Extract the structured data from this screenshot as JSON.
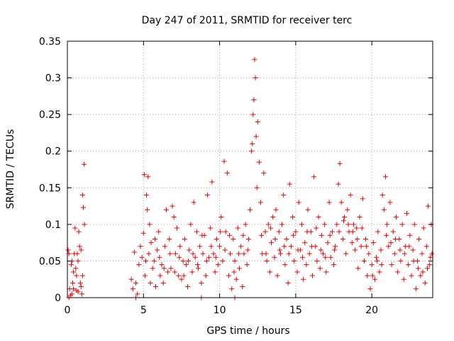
{
  "chart_data": {
    "type": "scatter",
    "title": "Day 247 of 2011, SRMTID for receiver terc",
    "xlabel": "GPS time / hours",
    "ylabel": "SRMTID / TECUs",
    "xlim": [
      0,
      24
    ],
    "ylim": [
      0,
      0.35
    ],
    "xticks": [
      0,
      5,
      10,
      15,
      20
    ],
    "xtick_labels": [
      "0",
      "5",
      "10",
      "15",
      "20"
    ],
    "yticks": [
      0,
      0.05,
      0.1,
      0.15,
      0.2,
      0.25,
      0.3,
      0.35
    ],
    "ytick_labels": [
      "0",
      "0.05",
      "0.1",
      "0.15",
      "0.2",
      "0.25",
      "0.3",
      "0.35"
    ],
    "grid": true,
    "marker": "+",
    "series": [
      {
        "name": "SRMTID",
        "color": "#ee0000",
        "points": [
          [
            0.05,
            0.065
          ],
          [
            0.1,
            0.06
          ],
          [
            0.15,
            0.012
          ],
          [
            0.2,
            0.003
          ],
          [
            0.25,
            0.045
          ],
          [
            0.3,
            0.05
          ],
          [
            0.35,
            0.02
          ],
          [
            0.4,
            0.035
          ],
          [
            0.45,
            0.06
          ],
          [
            0.5,
            0.095
          ],
          [
            0.55,
            0.04
          ],
          [
            0.6,
            0.01
          ],
          [
            0.65,
            0.06
          ],
          [
            0.7,
            0.05
          ],
          [
            0.75,
            0.09
          ],
          [
            0.8,
            0.07
          ],
          [
            0.85,
            0.02
          ],
          [
            0.9,
            0.065
          ],
          [
            0.95,
            0.005
          ],
          [
            1.0,
            0.14
          ],
          [
            1.05,
            0.123
          ],
          [
            1.1,
            0.182
          ],
          [
            1.12,
            0.1
          ],
          [
            1.0,
            0.03
          ],
          [
            0.9,
            0.015
          ],
          [
            0.4,
            0.012
          ],
          [
            0.3,
            0.005
          ],
          [
            0.6,
            0.03
          ],
          [
            0.7,
            0.008
          ],
          [
            4.2,
            0.025
          ],
          [
            4.3,
            0.012
          ],
          [
            4.4,
            0.062
          ],
          [
            4.5,
            0.02
          ],
          [
            4.6,
            0.005
          ],
          [
            4.7,
            0.045
          ],
          [
            4.8,
            0.07
          ],
          [
            4.9,
            0.055
          ],
          [
            5.0,
            0.088
          ],
          [
            5.05,
            0.168
          ],
          [
            5.1,
            0.03
          ],
          [
            5.2,
            0.14
          ],
          [
            5.25,
            0.12
          ],
          [
            5.3,
            0.165
          ],
          [
            5.35,
            0.06
          ],
          [
            5.4,
            0.1
          ],
          [
            5.5,
            0.075
          ],
          [
            5.6,
            0.04
          ],
          [
            5.7,
            0.05
          ],
          [
            5.8,
            0.015
          ],
          [
            5.9,
            0.065
          ],
          [
            6.0,
            0.09
          ],
          [
            6.1,
            0.03
          ],
          [
            6.2,
            0.045
          ],
          [
            6.3,
            0.02
          ],
          [
            6.4,
            0.07
          ],
          [
            6.5,
            0.12
          ],
          [
            6.6,
            0.035
          ],
          [
            6.7,
            0.08
          ],
          [
            6.8,
            0.04
          ],
          [
            6.9,
            0.125
          ],
          [
            7.0,
            0.11
          ],
          [
            7.1,
            0.06
          ],
          [
            7.2,
            0.095
          ],
          [
            7.3,
            0.03
          ],
          [
            7.4,
            0.07
          ],
          [
            7.5,
            0.025
          ],
          [
            7.6,
            0.05
          ],
          [
            7.7,
            0.08
          ],
          [
            7.8,
            0.045
          ],
          [
            7.9,
            0.015
          ],
          [
            8.0,
            0.065
          ],
          [
            8.1,
            0.1
          ],
          [
            8.2,
            0.035
          ],
          [
            8.3,
            0.13
          ],
          [
            8.4,
            0.055
          ],
          [
            8.5,
            0.09
          ],
          [
            8.6,
            0.04
          ],
          [
            8.7,
            0.07
          ],
          [
            8.8,
            0.02
          ],
          [
            8.9,
            0.06
          ],
          [
            9.0,
            0.085
          ],
          [
            9.1,
            0.03
          ],
          [
            9.2,
            0.14
          ],
          [
            9.3,
            0.055
          ],
          [
            9.4,
            0.095
          ],
          [
            9.5,
            0.158
          ],
          [
            9.6,
            0.06
          ],
          [
            9.7,
            0.035
          ],
          [
            9.8,
            0.08
          ],
          [
            9.9,
            0.045
          ],
          [
            10.0,
            0.07
          ],
          [
            10.1,
            0.11
          ],
          [
            10.2,
            0.05
          ],
          [
            10.3,
            0.186
          ],
          [
            10.4,
            0.09
          ],
          [
            10.5,
            0.17
          ],
          [
            10.6,
            0.03
          ],
          [
            10.7,
            0.06
          ],
          [
            10.8,
            0.012
          ],
          [
            10.9,
            0.08
          ],
          [
            11.0,
            0.05
          ],
          [
            11.1,
            0.025
          ],
          [
            11.2,
            0.095
          ],
          [
            11.3,
            0.04
          ],
          [
            11.4,
            0.07
          ],
          [
            11.5,
            0.015
          ],
          [
            11.6,
            0.06
          ],
          [
            11.7,
            0.1
          ],
          [
            11.8,
            0.045
          ],
          [
            11.9,
            0.08
          ],
          [
            12.0,
            0.12
          ],
          [
            12.1,
            0.2
          ],
          [
            12.15,
            0.21
          ],
          [
            12.2,
            0.25
          ],
          [
            12.25,
            0.27
          ],
          [
            12.3,
            0.325
          ],
          [
            12.35,
            0.3
          ],
          [
            12.4,
            0.22
          ],
          [
            12.45,
            0.15
          ],
          [
            12.5,
            0.24
          ],
          [
            12.6,
            0.185
          ],
          [
            12.7,
            0.13
          ],
          [
            12.8,
            0.06
          ],
          [
            12.9,
            0.17
          ],
          [
            13.0,
            0.09
          ],
          [
            13.1,
            0.05
          ],
          [
            13.2,
            0.1
          ],
          [
            13.3,
            0.035
          ],
          [
            13.4,
            0.075
          ],
          [
            13.5,
            0.11
          ],
          [
            13.6,
            0.055
          ],
          [
            13.7,
            0.12
          ],
          [
            13.8,
            0.03
          ],
          [
            13.9,
            0.09
          ],
          [
            14.0,
            0.06
          ],
          [
            14.1,
            0.1
          ],
          [
            14.2,
            0.14
          ],
          [
            14.3,
            0.045
          ],
          [
            14.4,
            0.08
          ],
          [
            14.5,
            0.02
          ],
          [
            14.6,
            0.155
          ],
          [
            14.7,
            0.07
          ],
          [
            14.8,
            0.11
          ],
          [
            14.9,
            0.05
          ],
          [
            15.0,
            0.09
          ],
          [
            15.1,
            0.035
          ],
          [
            15.2,
            0.13
          ],
          [
            15.3,
            0.065
          ],
          [
            15.4,
            0.1
          ],
          [
            15.5,
            0.025
          ],
          [
            15.6,
            0.075
          ],
          [
            15.7,
            0.045
          ],
          [
            15.8,
            0.12
          ],
          [
            15.9,
            0.06
          ],
          [
            16.0,
            0.09
          ],
          [
            16.1,
            0.03
          ],
          [
            16.2,
            0.165
          ],
          [
            16.3,
            0.07
          ],
          [
            16.4,
            0.05
          ],
          [
            16.5,
            0.11
          ],
          [
            16.6,
            0.04
          ],
          [
            16.7,
            0.085
          ],
          [
            16.8,
            0.06
          ],
          [
            16.9,
            0.1
          ],
          [
            17.0,
            0.035
          ],
          [
            17.1,
            0.075
          ],
          [
            17.2,
            0.13
          ],
          [
            17.3,
            0.055
          ],
          [
            17.4,
            0.09
          ],
          [
            17.5,
            0.045
          ],
          [
            17.6,
            0.07
          ],
          [
            17.7,
            0.1
          ],
          [
            17.8,
            0.155
          ],
          [
            17.9,
            0.183
          ],
          [
            18.0,
            0.13
          ],
          [
            18.1,
            0.08
          ],
          [
            18.2,
            0.11
          ],
          [
            18.3,
            0.06
          ],
          [
            18.4,
            0.12
          ],
          [
            18.5,
            0.09
          ],
          [
            18.6,
            0.14
          ],
          [
            18.7,
            0.075
          ],
          [
            18.8,
            0.1
          ],
          [
            18.9,
            0.065
          ],
          [
            19.0,
            0.095
          ],
          [
            19.1,
            0.04
          ],
          [
            19.2,
            0.11
          ],
          [
            19.3,
            0.07
          ],
          [
            19.4,
            0.135
          ],
          [
            19.5,
            0.05
          ],
          [
            19.6,
            0.08
          ],
          [
            19.7,
            0.03
          ],
          [
            19.8,
            0.06
          ],
          [
            19.9,
            0.012
          ],
          [
            20.0,
            0.045
          ],
          [
            20.1,
            0.075
          ],
          [
            20.2,
            0.025
          ],
          [
            20.3,
            0.055
          ],
          [
            20.4,
            0.09
          ],
          [
            20.5,
            0.035
          ],
          [
            20.6,
            0.065
          ],
          [
            20.7,
            0.14
          ],
          [
            20.8,
            0.12
          ],
          [
            20.9,
            0.165
          ],
          [
            21.0,
            0.1
          ],
          [
            21.1,
            0.07
          ],
          [
            21.2,
            0.13
          ],
          [
            21.3,
            0.045
          ],
          [
            21.4,
            0.09
          ],
          [
            21.5,
            0.06
          ],
          [
            21.6,
            0.11
          ],
          [
            21.7,
            0.035
          ],
          [
            21.8,
            0.08
          ],
          [
            21.9,
            0.05
          ],
          [
            22.0,
            0.1
          ],
          [
            22.1,
            0.025
          ],
          [
            22.2,
            0.07
          ],
          [
            22.3,
            0.115
          ],
          [
            22.4,
            0.045
          ],
          [
            22.5,
            0.085
          ],
          [
            22.6,
            0.03
          ],
          [
            22.7,
            0.065
          ],
          [
            22.8,
            0.1
          ],
          [
            22.9,
            0.012
          ],
          [
            23.0,
            0.05
          ],
          [
            23.1,
            0.08
          ],
          [
            23.2,
            0.03
          ],
          [
            23.3,
            0.06
          ],
          [
            23.4,
            0.095
          ],
          [
            23.5,
            0.02
          ],
          [
            23.6,
            0.07
          ],
          [
            23.7,
            0.125
          ],
          [
            23.8,
            0.045
          ],
          [
            23.9,
            0.1
          ],
          [
            23.95,
            0.06
          ],
          [
            5.15,
            0.05
          ],
          [
            5.45,
            0.02
          ],
          [
            5.75,
            0.08
          ],
          [
            6.05,
            0.055
          ],
          [
            6.35,
            0.04
          ],
          [
            6.75,
            0.06
          ],
          [
            7.05,
            0.035
          ],
          [
            7.35,
            0.055
          ],
          [
            7.65,
            0.03
          ],
          [
            7.95,
            0.05
          ],
          [
            8.25,
            0.06
          ],
          [
            8.55,
            0.045
          ],
          [
            8.85,
            0.085
          ],
          [
            9.15,
            0.05
          ],
          [
            9.45,
            0.07
          ],
          [
            9.75,
            0.055
          ],
          [
            10.05,
            0.09
          ],
          [
            10.35,
            0.065
          ],
          [
            10.65,
            0.085
          ],
          [
            10.95,
            0.035
          ],
          [
            11.25,
            0.06
          ],
          [
            11.55,
            0.085
          ],
          [
            11.85,
            0.065
          ],
          [
            12.75,
            0.085
          ],
          [
            13.05,
            0.06
          ],
          [
            13.35,
            0.095
          ],
          [
            13.65,
            0.08
          ],
          [
            13.95,
            0.065
          ],
          [
            14.25,
            0.07
          ],
          [
            14.55,
            0.06
          ],
          [
            14.85,
            0.085
          ],
          [
            15.15,
            0.065
          ],
          [
            15.45,
            0.055
          ],
          [
            15.75,
            0.09
          ],
          [
            16.05,
            0.07
          ],
          [
            16.35,
            0.095
          ],
          [
            16.65,
            0.065
          ],
          [
            16.95,
            0.055
          ],
          [
            17.25,
            0.085
          ],
          [
            17.55,
            0.065
          ],
          [
            17.85,
            0.09
          ],
          [
            18.15,
            0.105
          ],
          [
            18.45,
            0.1
          ],
          [
            18.75,
            0.09
          ],
          [
            19.05,
            0.08
          ],
          [
            19.35,
            0.095
          ],
          [
            19.65,
            0.07
          ],
          [
            20.05,
            0.03
          ],
          [
            20.35,
            0.05
          ],
          [
            20.65,
            0.045
          ],
          [
            20.95,
            0.085
          ],
          [
            21.25,
            0.075
          ],
          [
            21.55,
            0.08
          ],
          [
            21.85,
            0.065
          ],
          [
            22.15,
            0.06
          ],
          [
            22.45,
            0.07
          ],
          [
            22.75,
            0.05
          ],
          [
            23.05,
            0.04
          ],
          [
            23.35,
            0.035
          ],
          [
            23.65,
            0.04
          ],
          [
            23.85,
            0.055
          ],
          [
            8.8,
            0.0
          ],
          [
            11.0,
            0.0
          ],
          [
            4.5,
            0.0
          ],
          [
            0.1,
            0.0
          ]
        ]
      }
    ]
  }
}
